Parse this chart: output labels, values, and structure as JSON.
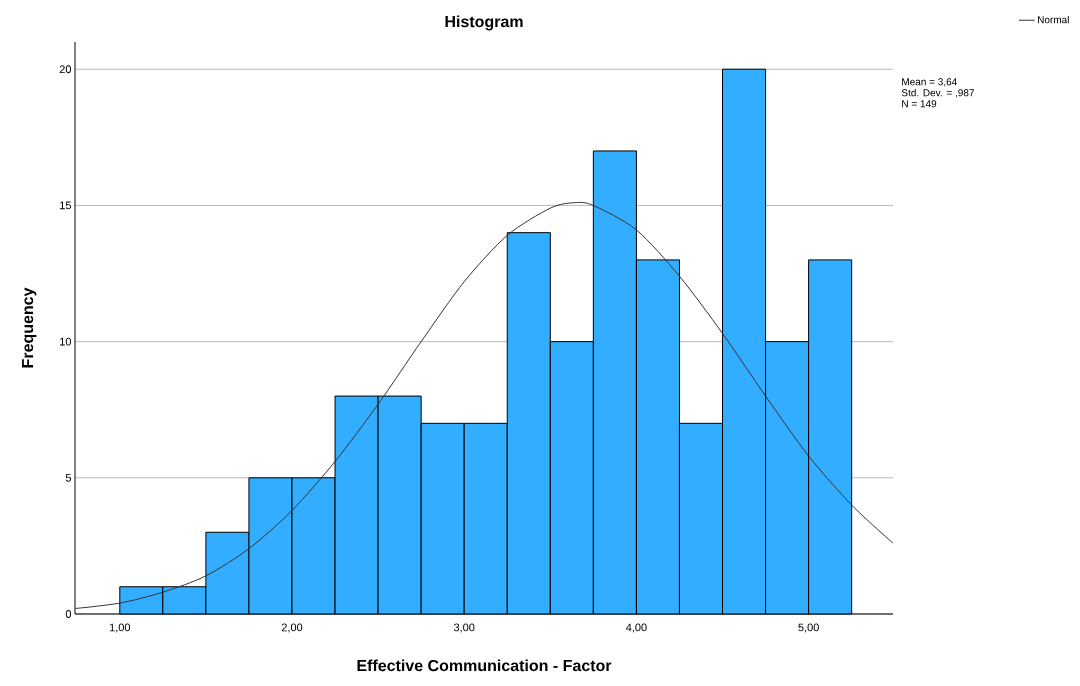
{
  "chart_data": {
    "type": "histogram",
    "title": "Histogram",
    "xlabel": "Effective Communication - Factor",
    "ylabel": "Frequency",
    "series": [
      {
        "color": "#33adff",
        "bins": [
          1.0,
          1.25,
          1.5,
          1.75,
          2.0,
          2.25,
          2.5,
          2.75,
          3.0,
          3.25,
          3.5,
          3.75,
          4.0,
          4.25,
          4.5,
          4.75,
          5.0,
          5.25
        ],
        "values": [
          1,
          1,
          3,
          5,
          5,
          8,
          8,
          7,
          7,
          14,
          10,
          17,
          13,
          7,
          20,
          10,
          13
        ]
      },
      {
        "type": "line",
        "name": "Normal",
        "color": "#333333",
        "x": [
          0.74,
          1.0,
          1.25,
          1.5,
          1.75,
          2.0,
          2.25,
          2.5,
          2.75,
          3.0,
          3.25,
          3.5,
          3.64,
          3.75,
          4.0,
          4.25,
          4.5,
          4.75,
          5.0,
          5.25,
          5.49
        ],
        "values": [
          0.2,
          0.4,
          0.8,
          1.4,
          2.4,
          3.8,
          5.6,
          7.7,
          10.0,
          12.2,
          13.9,
          14.9,
          15.1,
          15.0,
          14.1,
          12.4,
          10.3,
          8.0,
          5.8,
          4.0,
          2.6
        ]
      }
    ],
    "xlim": [
      0.74,
      5.49
    ],
    "ylim": [
      0,
      21
    ],
    "xticks": [
      {
        "value": 1,
        "label": "1,00"
      },
      {
        "value": 2,
        "label": "2,00"
      },
      {
        "value": 3,
        "label": "3,00"
      },
      {
        "value": 4,
        "label": "4,00"
      },
      {
        "value": 5,
        "label": "5,00"
      }
    ],
    "yticks": [
      0,
      5,
      10,
      15,
      20
    ],
    "grid": "y",
    "legend": "top right",
    "annotations": [
      "Mean = 3,64",
      "Std. Dev. = ,987",
      "N = 149"
    ]
  }
}
